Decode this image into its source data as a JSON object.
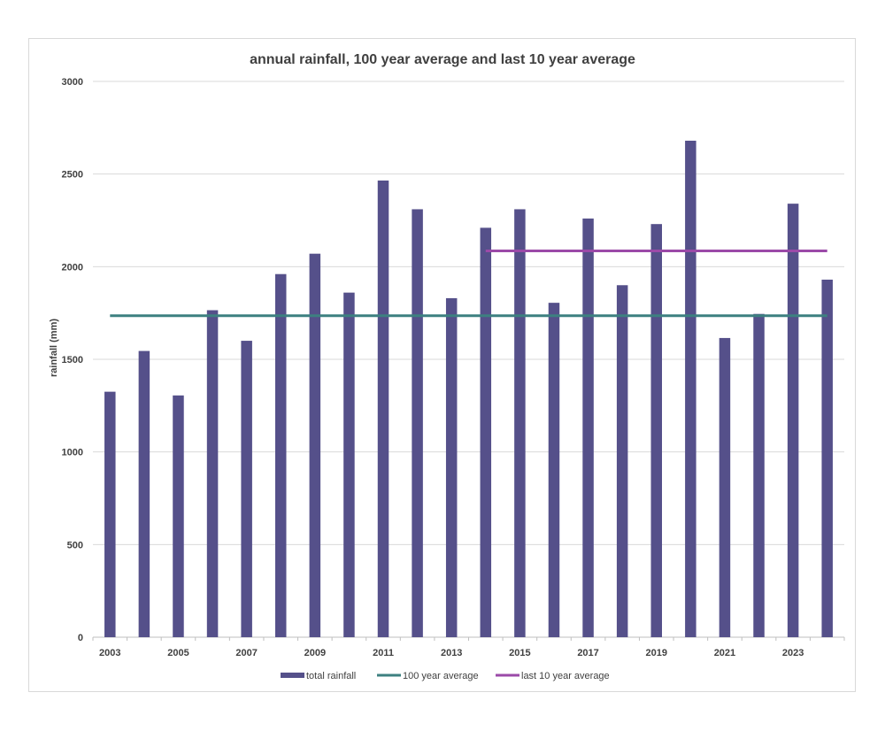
{
  "chart_data": {
    "type": "bar",
    "title": "annual rainfall, 100 year average and last 10 year average",
    "xlabel": "",
    "ylabel": "rainfall (mm)",
    "ylim": [
      0,
      3000
    ],
    "yticks": [
      "0",
      "500",
      "1000",
      "1500",
      "2000",
      "2500",
      "3000"
    ],
    "categories": [
      "2003",
      "2004",
      "2005",
      "2006",
      "2007",
      "2008",
      "2009",
      "2010",
      "2011",
      "2012",
      "2013",
      "2014",
      "2015",
      "2016",
      "2017",
      "2018",
      "2019",
      "2020",
      "2021",
      "2022",
      "2023",
      "2024"
    ],
    "x_tick_labels": [
      "2003",
      "2005",
      "2007",
      "2009",
      "2011",
      "2013",
      "2015",
      "2017",
      "2019",
      "2021",
      "2023"
    ],
    "grid": true,
    "legend_position": "bottom",
    "series": [
      {
        "name": "total rainfall",
        "kind": "bar",
        "color": "#55508a",
        "values": [
          1325,
          1545,
          1305,
          1765,
          1600,
          1960,
          2070,
          1860,
          2465,
          2310,
          1830,
          2210,
          2310,
          1805,
          2260,
          1900,
          2230,
          2680,
          1615,
          1745,
          2340,
          1930
        ]
      },
      {
        "name": "100 year average",
        "kind": "line",
        "color": "#3d8080",
        "value": 1735,
        "from": "2003",
        "to": "2024"
      },
      {
        "name": "last 10 year average",
        "kind": "line",
        "color": "#9b4aa8",
        "value": 2085,
        "from": "2014",
        "to": "2024"
      }
    ]
  }
}
